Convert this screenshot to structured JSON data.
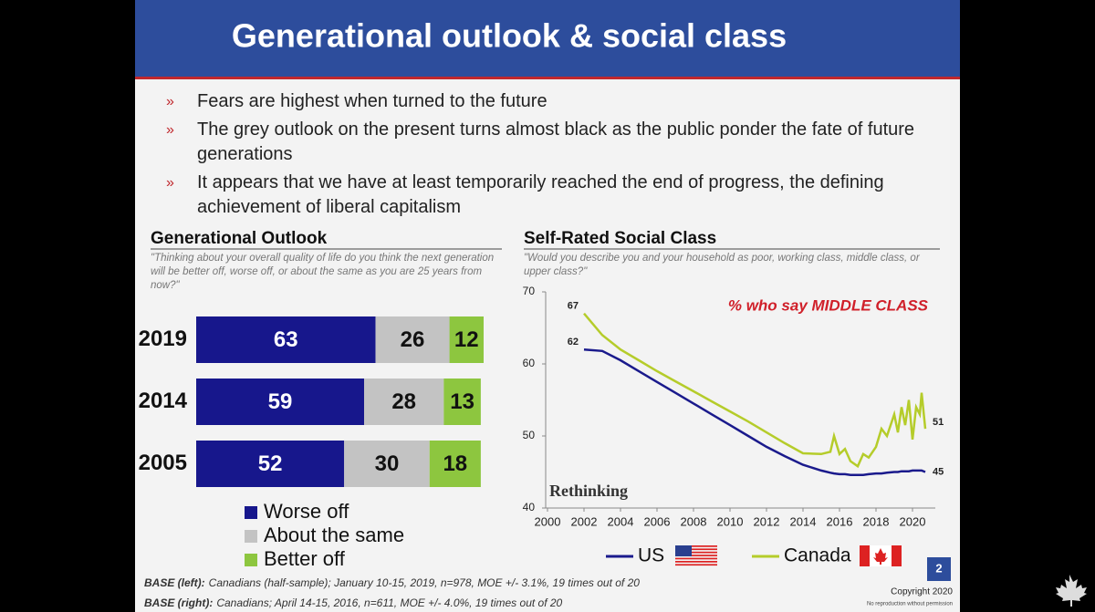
{
  "title": "Generational outlook & social class",
  "bullets": [
    "Fears are highest when turned to the future",
    "The grey outlook on the present turns almost black as the public ponder the fate of future generations",
    "It appears that we have at least temporarily reached the end of progress, the defining achievement of liberal capitalism"
  ],
  "chart_data": [
    {
      "type": "stacked-bar-horizontal",
      "title": "Generational Outlook",
      "subtitle": "\"Thinking about your overall quality of life do you think the next generation will be better off, worse off, or about the same as you are 25 years from now?\"",
      "categories": [
        "2019",
        "2014",
        "2005"
      ],
      "series": [
        {
          "name": "Worse off",
          "color": "#17178c",
          "values": [
            63,
            59,
            52
          ]
        },
        {
          "name": "About the same",
          "color": "#c3c3c3",
          "values": [
            26,
            28,
            30
          ]
        },
        {
          "name": "Better off",
          "color": "#8dc63f",
          "values": [
            12,
            13,
            18
          ]
        }
      ]
    },
    {
      "type": "line",
      "title": "Self-Rated Social Class",
      "subtitle": "\"Would you describe you and your household as poor, working class, middle class, or upper class?\"",
      "annotation": "% who say MIDDLE CLASS",
      "watermark": "Rethinking",
      "x": [
        2002,
        2003,
        2004,
        2005,
        2006,
        2007,
        2008,
        2009,
        2010,
        2011,
        2012,
        2013,
        2014,
        2015,
        2015.5,
        2015.7,
        2016,
        2016.3,
        2016.6,
        2017,
        2017.3,
        2017.6,
        2018,
        2018.3,
        2018.6,
        2019,
        2019.2,
        2019.4,
        2019.6,
        2019.8,
        2020,
        2020.2,
        2020.4,
        2020.5,
        2020.7
      ],
      "series": [
        {
          "name": "US",
          "color": "#1a1a8c",
          "values": [
            62,
            61.8,
            60.5,
            59,
            57.5,
            56,
            54.5,
            53,
            51.5,
            50,
            48.5,
            47.2,
            46,
            45.2,
            44.9,
            44.8,
            44.7,
            44.7,
            44.6,
            44.6,
            44.6,
            44.7,
            44.8,
            44.8,
            44.9,
            45,
            45,
            45.1,
            45.1,
            45.1,
            45.2,
            45.2,
            45.2,
            45.2,
            45
          ]
        },
        {
          "name": "Canada",
          "color": "#b5cc2a",
          "values": [
            67,
            64,
            62,
            60.5,
            59,
            57.6,
            56.2,
            54.8,
            53.4,
            52,
            50.5,
            49,
            47.6,
            47.5,
            47.8,
            50,
            47.5,
            48.2,
            46.5,
            45.8,
            47.5,
            47,
            48.5,
            51,
            50,
            53,
            50.5,
            54,
            51.5,
            55,
            49.5,
            54,
            53,
            56,
            51
          ]
        }
      ],
      "xlim": [
        2000,
        2021
      ],
      "xticks": [
        2000,
        2002,
        2004,
        2006,
        2008,
        2010,
        2012,
        2014,
        2016,
        2018,
        2020
      ],
      "ylim": [
        40,
        70
      ],
      "yticks": [
        40,
        50,
        60,
        70
      ]
    }
  ],
  "footnotes": [
    {
      "label": "BASE (left):",
      "text": "Canadians (half-sample); January 10-15, 2019, n=978, MOE +/- 3.1%, 19 times out of 20"
    },
    {
      "label": "BASE (right):",
      "text": "Canadians; April 14-15, 2016, n=611, MOE +/- 4.0%, 19 times out of 20"
    }
  ],
  "page_number": "2",
  "copyright": "Copyright 2020",
  "notice": "No reproduction without permission"
}
